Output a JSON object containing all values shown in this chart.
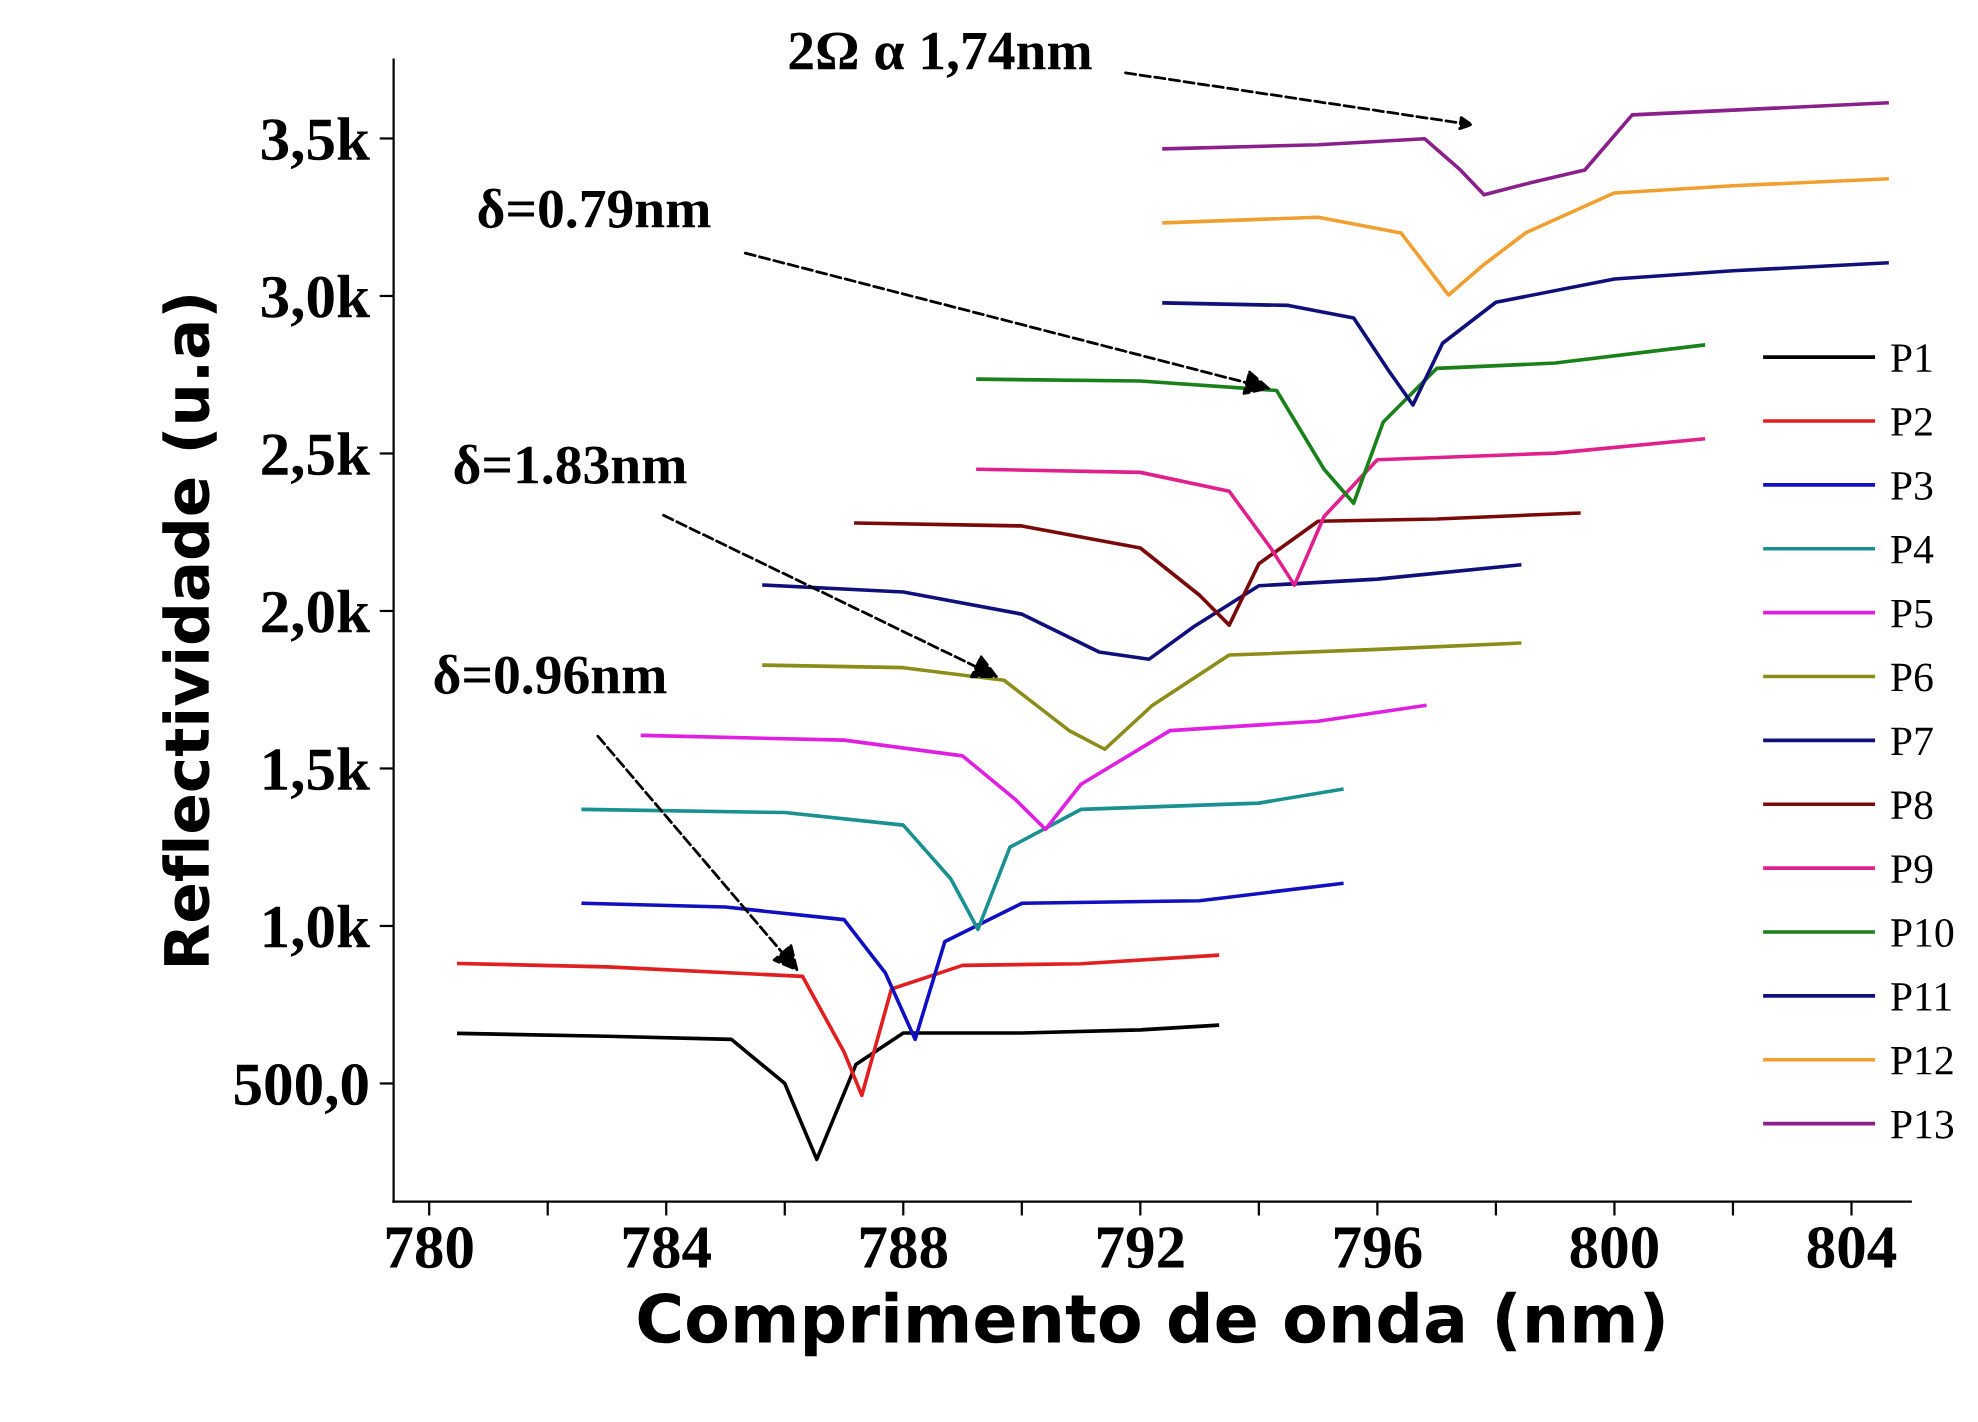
{
  "chart_data": {
    "type": "line",
    "xlabel": "Comprimento de onda (nm)",
    "ylabel": "Reflectividade (u.a)",
    "xlim": [
      779.4,
      805
    ],
    "xticks": [
      780,
      {
        "value": 782,
        "label": null
      },
      784,
      {
        "value": 786,
        "label": null
      },
      788,
      {
        "value": 790,
        "label": null
      },
      792,
      {
        "value": 794,
        "label": null
      },
      796,
      {
        "value": 798,
        "label": null
      },
      800,
      {
        "value": 802,
        "label": null
      },
      804
    ],
    "ylim": [
      125,
      3750
    ],
    "yticks": [
      {
        "value": 500,
        "label": "500,0"
      },
      {
        "value": 1000,
        "label": "1,0k"
      },
      {
        "value": 1500,
        "label": "1,5k"
      },
      {
        "value": 2000,
        "label": "2,0k"
      },
      {
        "value": 2500,
        "label": "2,5k"
      },
      {
        "value": 3000,
        "label": "3,0k"
      },
      {
        "value": 3500,
        "label": "3,5k"
      }
    ],
    "grid": false,
    "legend": "right",
    "marker": "none",
    "line_style": "solid",
    "series": [
      {
        "name": "P1",
        "color": "#000000",
        "x": [
          780.5,
          783,
          785.1,
          786,
          786.54,
          787.2,
          788,
          790,
          792,
          793.3
        ],
        "values": [
          659,
          650,
          640,
          500,
          259,
          560,
          660,
          660,
          670,
          685
        ]
      },
      {
        "name": "P2",
        "color": "#e02020",
        "x": [
          780.5,
          783,
          786.3,
          787,
          787.3,
          787.8,
          789,
          791,
          793.3
        ],
        "values": [
          881,
          870,
          840,
          600,
          462,
          800,
          875,
          880,
          907
        ]
      },
      {
        "name": "P3",
        "color": "#1010c0",
        "x": [
          782.6,
          785,
          787,
          787.7,
          788.2,
          788.7,
          790,
          793,
          795.4
        ],
        "values": [
          1072,
          1060,
          1020,
          850,
          640,
          950,
          1072,
          1080,
          1135
        ]
      },
      {
        "name": "P4",
        "color": "#1a9090",
        "x": [
          782.6,
          786,
          788,
          788.8,
          789.26,
          789.8,
          791,
          794,
          795.4
        ],
        "values": [
          1370,
          1360,
          1320,
          1150,
          989,
          1250,
          1370,
          1390,
          1434
        ]
      },
      {
        "name": "P5",
        "color": "#e020e0",
        "x": [
          783.6,
          787,
          789,
          789.9,
          790.4,
          791,
          792.5,
          795,
          796.8
        ],
        "values": [
          1605,
          1590,
          1540,
          1400,
          1307,
          1450,
          1620,
          1650,
          1700
        ]
      },
      {
        "name": "P6",
        "color": "#8c8c1a",
        "x": [
          785.65,
          788,
          789.7,
          790.8,
          791.4,
          792.2,
          793.5,
          796,
          798.4
        ],
        "values": [
          1828,
          1820,
          1780,
          1620,
          1561,
          1700,
          1860,
          1878,
          1898
        ]
      },
      {
        "name": "P7",
        "color": "#10107a",
        "x": [
          785.65,
          788,
          790,
          791.3,
          792.15,
          792.9,
          794,
          796,
          798.4
        ],
        "values": [
          2082,
          2060,
          1990,
          1870,
          1847,
          1950,
          2080,
          2101,
          2146
        ]
      },
      {
        "name": "P8",
        "color": "#7a0a0a",
        "x": [
          787.2,
          790,
          792,
          793,
          793.5,
          794,
          795,
          797,
          799.4
        ],
        "values": [
          2279,
          2270,
          2200,
          2050,
          1955,
          2150,
          2285,
          2292,
          2311
        ]
      },
      {
        "name": "P9",
        "color": "#e0208c",
        "x": [
          789.26,
          792,
          793.5,
          794.2,
          794.6,
          795.1,
          796,
          799,
          801.5
        ],
        "values": [
          2450,
          2440,
          2380,
          2200,
          2082,
          2300,
          2480,
          2501,
          2546
        ]
      },
      {
        "name": "P10",
        "color": "#1a801a",
        "x": [
          789.26,
          792,
          794.3,
          795.1,
          795.6,
          796.1,
          797,
          799,
          801.5
        ],
        "values": [
          2736,
          2730,
          2700,
          2450,
          2342,
          2600,
          2770,
          2787,
          2844
        ]
      },
      {
        "name": "P11",
        "color": "#10107a",
        "x": [
          792.4,
          794.5,
          795.6,
          796.2,
          796.6,
          797.1,
          798,
          800,
          802,
          804.6
        ],
        "values": [
          2978,
          2970,
          2930,
          2760,
          2654,
          2850,
          2980,
          3054,
          3080,
          3105
        ]
      },
      {
        "name": "P12",
        "color": "#f0a030",
        "x": [
          792.4,
          795,
          796.4,
          797.2,
          797.8,
          798.5,
          800,
          802,
          804.6
        ],
        "values": [
          3232,
          3250,
          3200,
          3003,
          3100,
          3200,
          3327,
          3350,
          3372
        ]
      },
      {
        "name": "P13",
        "color": "#8a208a",
        "x": [
          792.4,
          795,
          796.8,
          797.4,
          797.8,
          798.6,
          799.5,
          800.3,
          802,
          804.6
        ],
        "values": [
          3467,
          3480,
          3499,
          3400,
          3321,
          3360,
          3400,
          3575,
          3590,
          3613
        ]
      }
    ],
    "annotations": [
      "2Ω α 1,74nm",
      {
        "text": "δ=0.79nm",
        "x": 794.3,
        "y": 2700
      },
      {
        "text": "δ=1.83nm",
        "x": 789.7,
        "y": 1780
      },
      {
        "text": "δ=0.96nm",
        "x": 786.3,
        "y": 840
      }
    ]
  }
}
